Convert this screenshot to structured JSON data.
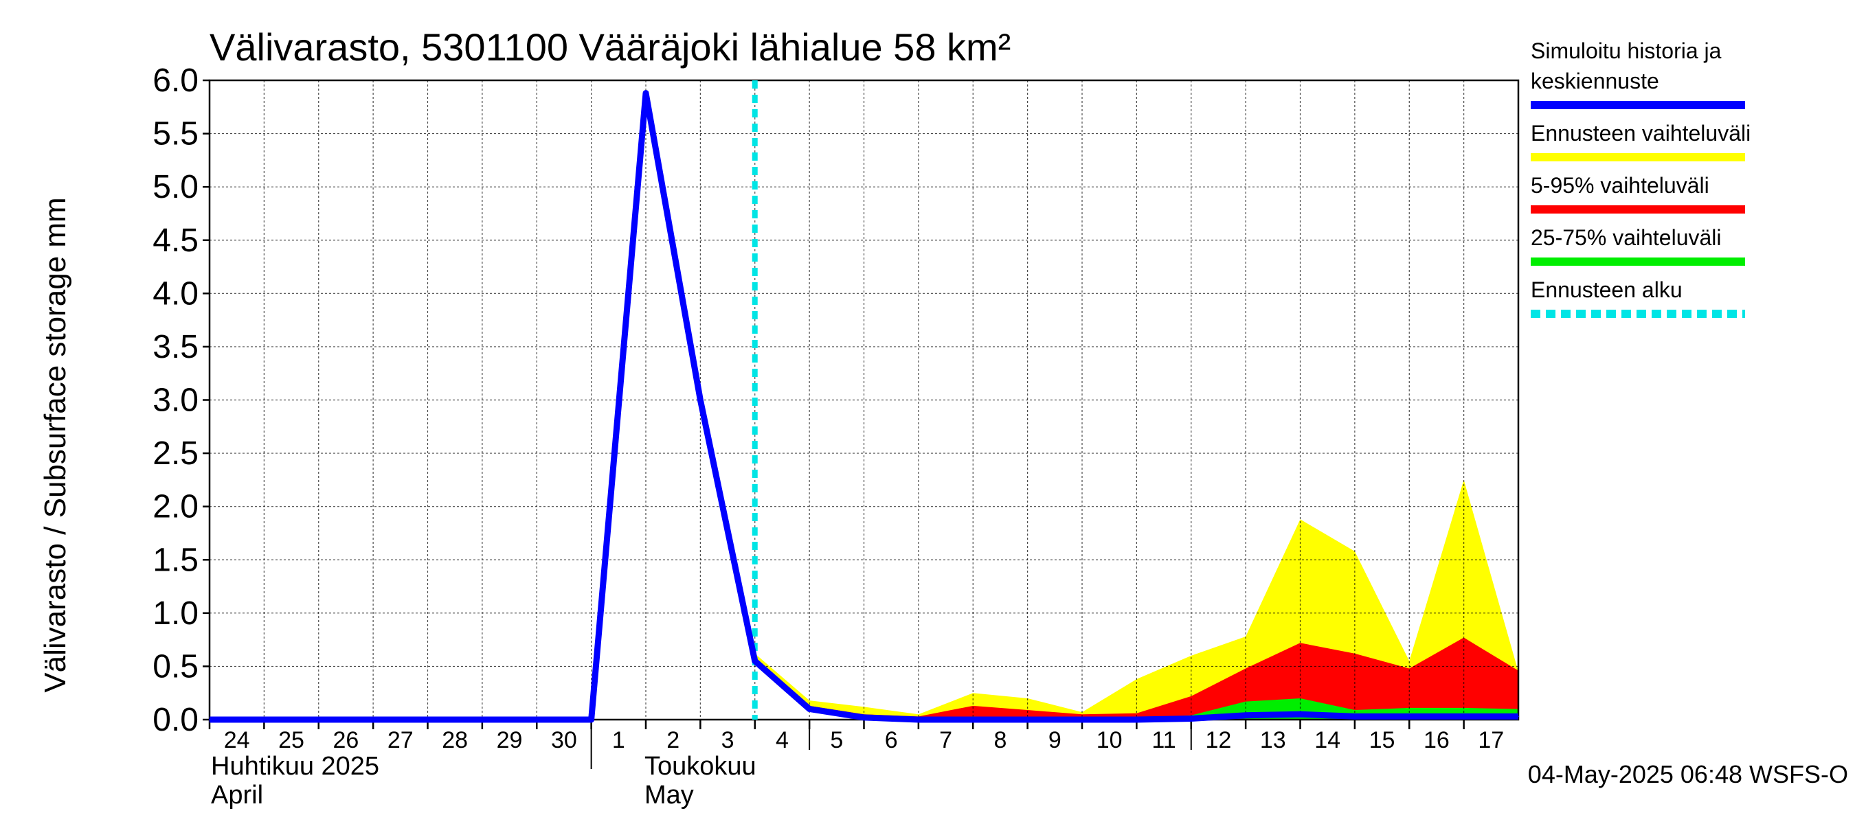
{
  "chart_data": {
    "type": "area",
    "title": "Välivarasto, 5301100 Vääräjoki lähialue 58 km²",
    "ylabel": "Välivarasto / Subsurface storage  mm",
    "ylim": [
      0,
      6.0
    ],
    "y_ticks": [
      "0.0",
      "0.5",
      "1.0",
      "1.5",
      "2.0",
      "2.5",
      "3.0",
      "3.5",
      "4.0",
      "4.5",
      "5.0",
      "5.5",
      "6.0"
    ],
    "x_day_labels": [
      "24",
      "25",
      "26",
      "27",
      "28",
      "29",
      "30",
      "1",
      "2",
      "3",
      "4",
      "5",
      "6",
      "7",
      "8",
      "9",
      "10",
      "11",
      "12",
      "13",
      "14",
      "15",
      "16",
      "17"
    ],
    "month_labels": [
      {
        "fi": "Huhtikuu  2025",
        "en": "April"
      },
      {
        "fi": "Toukokuu",
        "en": "May"
      }
    ],
    "grid": true,
    "legend_position": "right",
    "forecast_start": "2025-05-04",
    "series": [
      {
        "name": "Simuloitu historia ja keskiennuste",
        "kind": "line",
        "color": "#0000ff",
        "x": [
          "2025-04-24",
          "2025-04-25",
          "2025-04-26",
          "2025-04-27",
          "2025-04-28",
          "2025-04-29",
          "2025-04-30",
          "2025-05-01",
          "2025-05-02",
          "2025-05-03",
          "2025-05-04",
          "2025-05-05",
          "2025-05-06",
          "2025-05-07",
          "2025-05-08",
          "2025-05-09",
          "2025-05-10",
          "2025-05-11",
          "2025-05-12",
          "2025-05-13",
          "2025-05-14",
          "2025-05-15",
          "2025-05-16",
          "2025-05-17",
          "2025-05-18"
        ],
        "values": [
          0.0,
          0.0,
          0.0,
          0.0,
          0.0,
          0.0,
          0.0,
          0.0,
          5.88,
          3.0,
          0.55,
          0.1,
          0.02,
          0.0,
          0.0,
          0.0,
          0.0,
          0.0,
          0.01,
          0.04,
          0.05,
          0.03,
          0.03,
          0.03,
          0.03
        ]
      },
      {
        "name": "Ennusteen vaihteluväli",
        "kind": "band",
        "color": "#ffff00",
        "x": [
          "2025-05-04",
          "2025-05-05",
          "2025-05-06",
          "2025-05-07",
          "2025-05-08",
          "2025-05-09",
          "2025-05-10",
          "2025-05-11",
          "2025-05-12",
          "2025-05-13",
          "2025-05-14",
          "2025-05-15",
          "2025-05-16",
          "2025-05-17",
          "2025-05-18"
        ],
        "low": [
          0.55,
          0.08,
          0.0,
          0.0,
          0.0,
          0.0,
          0.0,
          0.0,
          0.0,
          0.0,
          0.0,
          0.0,
          0.0,
          0.0,
          0.0
        ],
        "high": [
          0.62,
          0.18,
          0.12,
          0.05,
          0.25,
          0.2,
          0.07,
          0.38,
          0.6,
          0.78,
          1.88,
          1.58,
          0.55,
          2.25,
          0.45
        ]
      },
      {
        "name": "5-95% vaihteluväli",
        "kind": "band",
        "color": "#ff0000",
        "x": [
          "2025-05-04",
          "2025-05-05",
          "2025-05-06",
          "2025-05-07",
          "2025-05-08",
          "2025-05-09",
          "2025-05-10",
          "2025-05-11",
          "2025-05-12",
          "2025-05-13",
          "2025-05-14",
          "2025-05-15",
          "2025-05-16",
          "2025-05-17",
          "2025-05-18"
        ],
        "low": [
          0.55,
          0.09,
          0.01,
          0.0,
          0.0,
          0.0,
          0.0,
          0.0,
          0.0,
          0.0,
          0.0,
          0.0,
          0.0,
          0.0,
          0.0
        ],
        "high": [
          0.58,
          0.13,
          0.05,
          0.03,
          0.13,
          0.09,
          0.05,
          0.06,
          0.22,
          0.48,
          0.72,
          0.62,
          0.48,
          0.77,
          0.46
        ]
      },
      {
        "name": "25-75% vaihteluväli",
        "kind": "band",
        "color": "#00ee00",
        "x": [
          "2025-05-04",
          "2025-05-05",
          "2025-05-06",
          "2025-05-07",
          "2025-05-08",
          "2025-05-09",
          "2025-05-10",
          "2025-05-11",
          "2025-05-12",
          "2025-05-13",
          "2025-05-14",
          "2025-05-15",
          "2025-05-16",
          "2025-05-17",
          "2025-05-18"
        ],
        "low": [
          0.55,
          0.1,
          0.02,
          0.0,
          0.0,
          0.0,
          0.0,
          0.0,
          0.0,
          0.0,
          0.0,
          0.0,
          0.0,
          0.0,
          0.0
        ],
        "high": [
          0.56,
          0.11,
          0.03,
          0.01,
          0.03,
          0.02,
          0.01,
          0.01,
          0.04,
          0.17,
          0.2,
          0.09,
          0.11,
          0.11,
          0.1
        ]
      },
      {
        "name": "Ennusteen alku",
        "kind": "vline",
        "color": "#00e5e5",
        "x": "2025-05-04"
      }
    ]
  },
  "legend": [
    {
      "lines": [
        "Simuloitu historia ja",
        "keskiennuste"
      ],
      "color": "#0000ff",
      "style": "solid"
    },
    {
      "lines": [
        "Ennusteen vaihteluväli"
      ],
      "color": "#ffff00",
      "style": "solid"
    },
    {
      "lines": [
        "5-95% vaihteluväli"
      ],
      "color": "#ff0000",
      "style": "solid"
    },
    {
      "lines": [
        "25-75% vaihteluväli"
      ],
      "color": "#00ee00",
      "style": "solid"
    },
    {
      "lines": [
        "Ennusteen alku"
      ],
      "color": "#00e5e5",
      "style": "dashed"
    }
  ],
  "footer": "04-May-2025 06:48 WSFS-O"
}
